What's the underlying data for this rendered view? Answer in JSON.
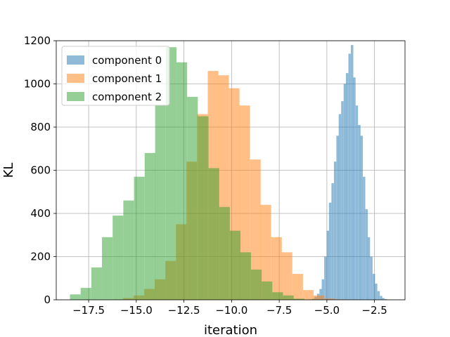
{
  "chart_data": {
    "type": "bar",
    "subtype": "histogram",
    "title": "",
    "xlabel": "iteration",
    "ylabel": "KL",
    "xlim": [
      -19.2,
      -0.9
    ],
    "ylim": [
      0,
      1200
    ],
    "xticks": [
      -17.5,
      -15.0,
      -12.5,
      -10.0,
      -7.5,
      -5.0,
      -2.5
    ],
    "xtick_labels": [
      "−17.5",
      "−15.0",
      "−12.5",
      "−10.0",
      "−7.5",
      "−5.0",
      "−2.5"
    ],
    "yticks": [
      0,
      200,
      400,
      600,
      800,
      1000,
      1200
    ],
    "ytick_labels": [
      "0",
      "200",
      "400",
      "600",
      "800",
      "1000",
      "1200"
    ],
    "grid": true,
    "legend_position": "upper-left",
    "series": [
      {
        "name": "component 0",
        "color": "#1f77b4",
        "alpha": 0.5,
        "bin_width": 0.127,
        "bins": [
          [
            -5.9,
            2
          ],
          [
            -5.77,
            5
          ],
          [
            -5.65,
            14
          ],
          [
            -5.52,
            28
          ],
          [
            -5.39,
            50
          ],
          [
            -5.27,
            95
          ],
          [
            -5.14,
            200
          ],
          [
            -5.01,
            320
          ],
          [
            -4.89,
            450
          ],
          [
            -4.76,
            540
          ],
          [
            -4.63,
            640
          ],
          [
            -4.5,
            760
          ],
          [
            -4.38,
            860
          ],
          [
            -4.25,
            920
          ],
          [
            -4.12,
            1000
          ],
          [
            -4.0,
            1050
          ],
          [
            -3.87,
            1140
          ],
          [
            -3.74,
            1180
          ],
          [
            -3.62,
            1030
          ],
          [
            -3.49,
            900
          ],
          [
            -3.36,
            810
          ],
          [
            -3.24,
            760
          ],
          [
            -3.11,
            570
          ],
          [
            -2.98,
            420
          ],
          [
            -2.86,
            290
          ],
          [
            -2.73,
            200
          ],
          [
            -2.6,
            120
          ],
          [
            -2.48,
            75
          ],
          [
            -2.35,
            40
          ],
          [
            -2.22,
            18
          ],
          [
            -2.1,
            8
          ],
          [
            -1.97,
            3
          ]
        ]
      },
      {
        "name": "component 1",
        "color": "#ff7f0e",
        "alpha": 0.5,
        "bin_width": 0.556,
        "bins": [
          [
            -16.26,
            2
          ],
          [
            -15.7,
            8
          ],
          [
            -15.14,
            20
          ],
          [
            -14.59,
            50
          ],
          [
            -14.03,
            95
          ],
          [
            -13.48,
            180
          ],
          [
            -12.92,
            350
          ],
          [
            -12.37,
            640
          ],
          [
            -11.81,
            860
          ],
          [
            -11.25,
            1060
          ],
          [
            -10.7,
            1040
          ],
          [
            -10.14,
            980
          ],
          [
            -9.59,
            900
          ],
          [
            -9.03,
            650
          ],
          [
            -8.48,
            440
          ],
          [
            -7.92,
            290
          ],
          [
            -7.37,
            220
          ],
          [
            -6.81,
            120
          ],
          [
            -6.25,
            45
          ],
          [
            -5.7,
            20
          ],
          [
            -5.14,
            6
          ],
          [
            -4.59,
            2
          ]
        ]
      },
      {
        "name": "component 2",
        "color": "#2ca02c",
        "alpha": 0.5,
        "bin_width": 0.558,
        "bins": [
          [
            -18.48,
            25
          ],
          [
            -17.92,
            55
          ],
          [
            -17.36,
            150
          ],
          [
            -16.8,
            290
          ],
          [
            -16.24,
            390
          ],
          [
            -15.68,
            460
          ],
          [
            -15.12,
            570
          ],
          [
            -14.56,
            680
          ],
          [
            -14.01,
            900
          ],
          [
            -13.45,
            1170
          ],
          [
            -12.89,
            1100
          ],
          [
            -12.33,
            940
          ],
          [
            -11.77,
            850
          ],
          [
            -11.21,
            610
          ],
          [
            -10.65,
            430
          ],
          [
            -10.09,
            320
          ],
          [
            -9.54,
            220
          ],
          [
            -8.98,
            140
          ],
          [
            -8.42,
            85
          ],
          [
            -7.86,
            35
          ],
          [
            -7.3,
            20
          ],
          [
            -6.74,
            5
          ]
        ]
      }
    ]
  }
}
